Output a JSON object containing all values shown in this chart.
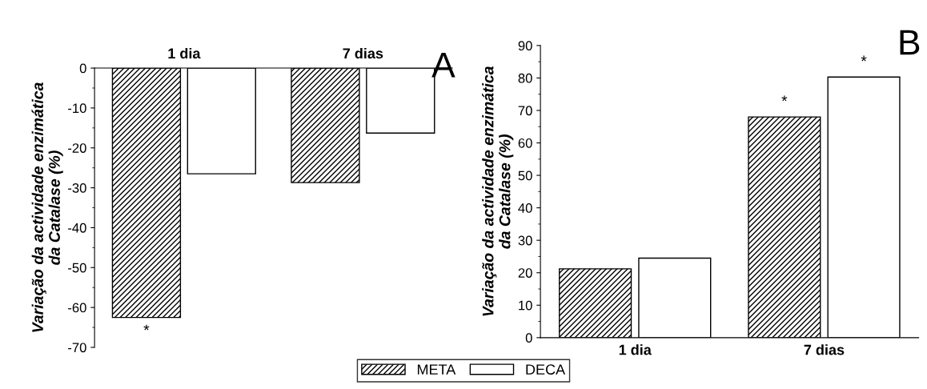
{
  "chart_data": [
    {
      "type": "bar",
      "categories": [
        "1 dia",
        "7 dias"
      ],
      "ylabel": "Variação da actividade enzimática\nda Catalase (%)",
      "ylim": [
        -70,
        0
      ],
      "yticks": [
        0,
        -10,
        -20,
        -30,
        -40,
        -50,
        -60,
        -70
      ],
      "annotations": [
        "A"
      ],
      "legend": "bottom",
      "series": [
        {
          "name": "META",
          "color": "#000000",
          "values": [
            -62.5,
            -28.7
          ],
          "value_labels": [
            "*",
            null
          ]
        },
        {
          "name": "DECA",
          "color": "#ffffff",
          "values": [
            -26.5,
            -16.3
          ]
        }
      ]
    },
    {
      "type": "bar",
      "categories": [
        "1 dia",
        "7 dias"
      ],
      "ylabel": "Variação da actividade enzimática\nda Catalase (%)",
      "ylim": [
        0,
        90
      ],
      "yticks": [
        0,
        10,
        20,
        30,
        40,
        50,
        60,
        70,
        80,
        90
      ],
      "annotations": [
        "B"
      ],
      "series": [
        {
          "color": "#000000",
          "values": [
            21.2,
            68.0
          ],
          "value_labels": [
            null,
            "*"
          ]
        },
        {
          "color": "#ffffff",
          "values": [
            24.5,
            80.3
          ],
          "value_labels": [
            null,
            "*"
          ]
        }
      ]
    }
  ]
}
